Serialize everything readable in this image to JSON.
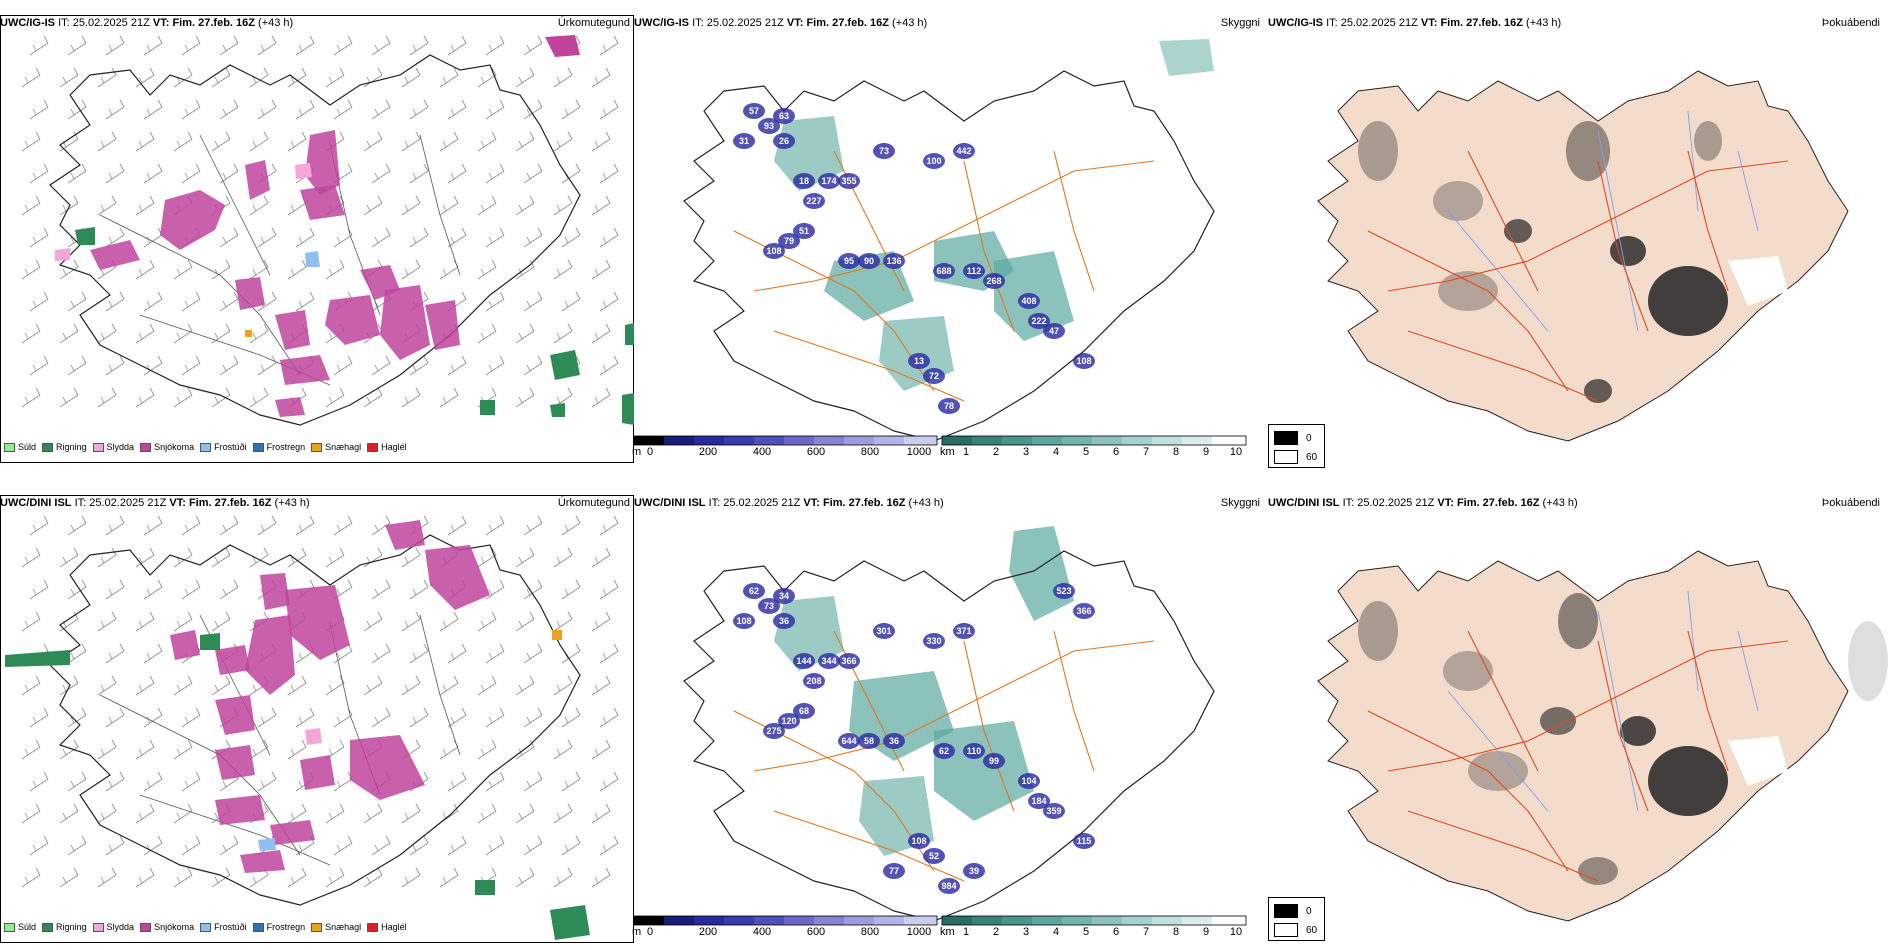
{
  "rows": [
    {
      "model": "UWC/IG-IS",
      "it_label": "IT:",
      "it_value": "25.02.2025 21Z",
      "vt_label": "VT: Fim. 27.feb. 16Z",
      "lead": "(+43 h)"
    },
    {
      "model": "UWC/DINI ISL",
      "it_label": "IT:",
      "it_value": "25.02.2025 21Z",
      "vt_label": "VT: Fim. 27.feb. 16Z",
      "lead": "(+43 h)"
    }
  ],
  "panel_titles": {
    "precip": "Úrkomutegund",
    "visibility": "Skyggni",
    "fog": "Þokuábendi"
  },
  "precip_legend": [
    {
      "label": "Súld",
      "color": "#90ee90"
    },
    {
      "label": "Rigning",
      "color": "#2e8b57"
    },
    {
      "label": "Slydda",
      "color": "#f4a6d7"
    },
    {
      "label": "Snjókoma",
      "color": "#c0449c"
    },
    {
      "label": "Frostúði",
      "color": "#8fbfef"
    },
    {
      "label": "Frostregn",
      "color": "#3070c0"
    },
    {
      "label": "Snæhagl",
      "color": "#f0a020"
    },
    {
      "label": "Haglél",
      "color": "#e02020"
    }
  ],
  "cloudbase_bar": {
    "unit": "m",
    "ticks": [
      "0",
      "200",
      "400",
      "600",
      "800",
      "1000"
    ]
  },
  "visibility_bar": {
    "unit": "km",
    "ticks": [
      "1",
      "2",
      "3",
      "4",
      "5",
      "6",
      "7",
      "8",
      "9",
      "10"
    ]
  },
  "fog_legend": {
    "low": "0",
    "high": "60"
  },
  "cloud_labels_top": [
    "57",
    "93",
    "63",
    "31",
    "26",
    "18",
    "227",
    "174",
    "355",
    "73",
    "100",
    "442",
    "108",
    "79",
    "51",
    "95",
    "90",
    "136",
    "688",
    "112",
    "268",
    "408",
    "222",
    "47",
    "108",
    "13",
    "72",
    "78"
  ],
  "cloud_labels_bottom": [
    "62",
    "73",
    "34",
    "108",
    "36",
    "144",
    "208",
    "344",
    "366",
    "301",
    "330",
    "371",
    "275",
    "120",
    "68",
    "644",
    "58",
    "36",
    "62",
    "110",
    "99",
    "104",
    "184",
    "359",
    "115",
    "108",
    "52",
    "984",
    "39",
    "77",
    "523",
    "366"
  ],
  "colors": {
    "snow": "#c0449c",
    "rain": "#2e8b57",
    "sleet": "#f4a6d7",
    "freezing_drizzle": "#8fbfef",
    "snow_grains": "#f0a020",
    "cloud_base": "#2828a0",
    "visibility": "#5aa9a0",
    "roads": "#e07820",
    "fog_land": "#f3dccc",
    "fog_roads": "#e04a20",
    "rivers": "#7f9ff0"
  }
}
